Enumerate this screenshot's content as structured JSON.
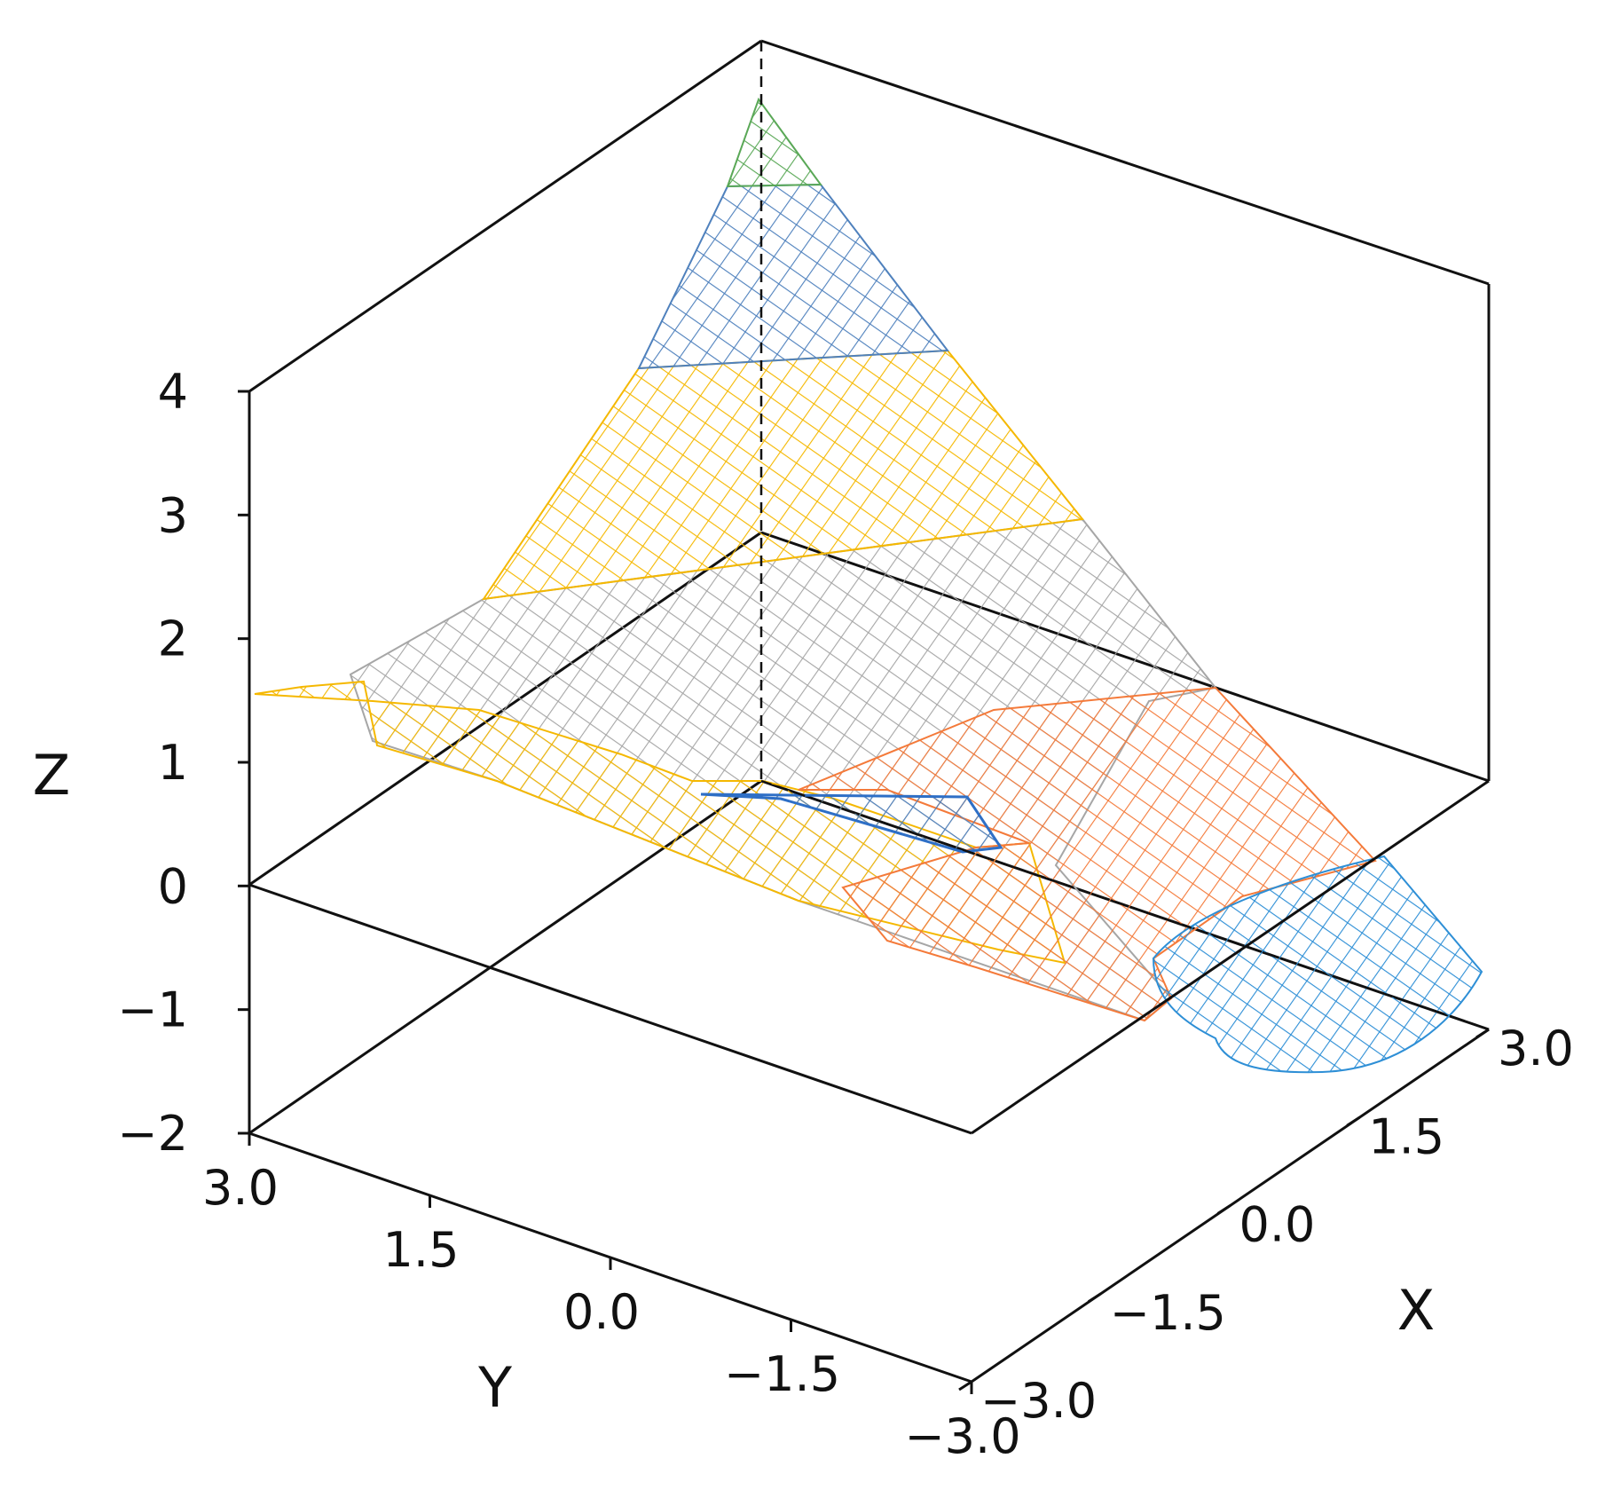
{
  "chart_data": {
    "type": "surface-3d-wireframe",
    "title": "",
    "xlabel": "X",
    "ylabel": "Y",
    "zlabel": "Z",
    "xlim": [
      -3.0,
      3.0
    ],
    "ylim": [
      -3.0,
      3.0
    ],
    "zlim": [
      -2,
      4
    ],
    "x_ticks": [
      {
        "value": -3.0,
        "label": "−3.0"
      },
      {
        "value": -1.5,
        "label": "−1.5"
      },
      {
        "value": 0.0,
        "label": "0.0"
      },
      {
        "value": 1.5,
        "label": "1.5"
      },
      {
        "value": 3.0,
        "label": "3.0"
      }
    ],
    "y_ticks": [
      {
        "value": 3.0,
        "label": "3.0"
      },
      {
        "value": 1.5,
        "label": "1.5"
      },
      {
        "value": 0.0,
        "label": "0.0"
      },
      {
        "value": -1.5,
        "label": "−1.5"
      },
      {
        "value": -3.0,
        "label": "−3.0"
      }
    ],
    "z_ticks": [
      {
        "value": 4,
        "label": "4"
      },
      {
        "value": 3,
        "label": "3"
      },
      {
        "value": 2,
        "label": "2"
      },
      {
        "value": 1,
        "label": "1"
      },
      {
        "value": 0,
        "label": "0"
      },
      {
        "value": -1,
        "label": "−1"
      },
      {
        "value": -2,
        "label": "−2"
      }
    ],
    "grid": false,
    "series": [
      {
        "color": "#f5b800",
        "description_surface": "upper-left wing"
      },
      {
        "color": "#4f81bd",
        "description_surface": "upper band"
      },
      {
        "color": "#5aa857",
        "description_surface": "apex"
      },
      {
        "color": "#a6a6a6",
        "description_surface": "middle band"
      },
      {
        "color": "#f47a3a",
        "description_surface": "right sheet"
      },
      {
        "color": "#2e8fd6",
        "description_surface": "right lobe"
      }
    ]
  }
}
